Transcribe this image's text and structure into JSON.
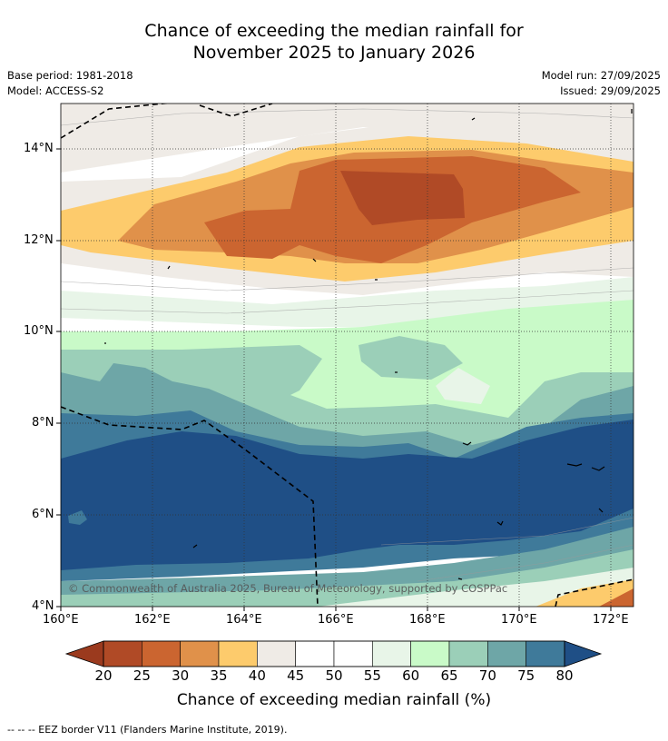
{
  "title": {
    "line1": "Chance of exceeding the median rainfall for",
    "line2": "November 2025 to January 2026"
  },
  "meta": {
    "base_period": "Base period: 1981-2018",
    "model": "Model: ACCESS-S2",
    "model_run": "Model run: 27/09/2025",
    "issued": "Issued: 29/09/2025"
  },
  "map": {
    "lat_labels": [
      "14°N",
      "12°N",
      "10°N",
      "8°N",
      "6°N",
      "4°N"
    ],
    "lon_labels": [
      "160°E",
      "162°E",
      "164°E",
      "166°E",
      "168°E",
      "170°E",
      "172°E"
    ],
    "copyright": "© Commonwealth of Australia 2025, Bureau of Meteorology, supported by COSPPac",
    "lat_range": [
      4,
      15
    ],
    "lon_range": [
      160,
      172.5
    ]
  },
  "colorbar": {
    "ticks": [
      "20",
      "25",
      "30",
      "35",
      "40",
      "45",
      "50",
      "55",
      "60",
      "65",
      "70",
      "75",
      "80"
    ],
    "colors": [
      "#b04a26",
      "#cb6530",
      "#e0914a",
      "#fdcb6c",
      "#efebe6",
      "#ffffff",
      "#ffffff",
      "#e8f5e8",
      "#c9fac8",
      "#9bcfb8",
      "#6ea6a7",
      "#3f7a9a"
    ],
    "low_extend_color": "#9b3a1e",
    "high_extend_color": "#1f4f86",
    "title": "Chance of exceeding median rainfall (%)"
  },
  "footnote": "-- -- -- EEZ border V11 (Flanders Marine Institute, 2019)."
}
